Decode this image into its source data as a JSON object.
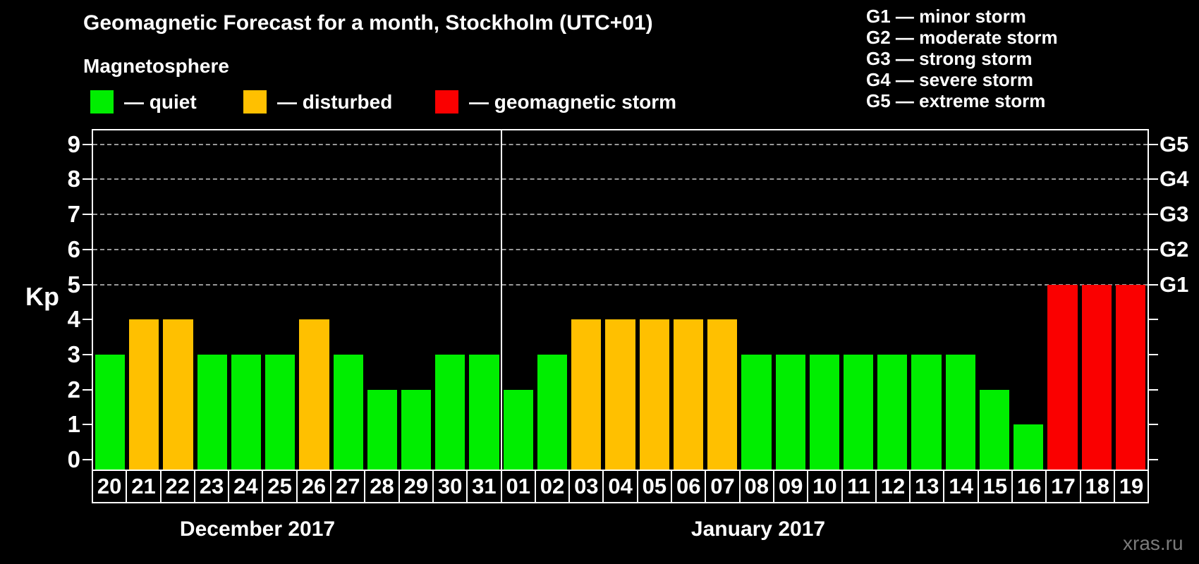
{
  "title": "Geomagnetic Forecast for a month, Stockholm (UTC+01)",
  "subtitle": "Magnetosphere",
  "legend": {
    "items": [
      {
        "name": "quiet",
        "label": "— quiet",
        "color": "#00ee00"
      },
      {
        "name": "disturbed",
        "label": "— disturbed",
        "color": "#ffc000"
      },
      {
        "name": "storm",
        "label": "— geomagnetic storm",
        "color": "#fa0000"
      }
    ]
  },
  "g_legend": [
    "G1 — minor storm",
    "G2 — moderate storm",
    "G3 — strong storm",
    "G4 — severe storm",
    "G5 — extreme storm"
  ],
  "watermark": "xras.ru",
  "chart_data": {
    "type": "bar",
    "title": "Geomagnetic Forecast for a month, Stockholm (UTC+01)",
    "ylabel": "Kp",
    "ylim": [
      0,
      9
    ],
    "yticks": [
      0,
      1,
      2,
      3,
      4,
      5,
      6,
      7,
      8,
      9
    ],
    "gridlines_at": [
      5,
      6,
      7,
      8,
      9
    ],
    "right_axis_labels": [
      {
        "kp": 5,
        "label": "G1"
      },
      {
        "kp": 6,
        "label": "G2"
      },
      {
        "kp": 7,
        "label": "G3"
      },
      {
        "kp": 8,
        "label": "G4"
      },
      {
        "kp": 9,
        "label": "G5"
      }
    ],
    "months": [
      {
        "label": "December 2017",
        "days": 12
      },
      {
        "label": "January 2017",
        "days": 19
      }
    ],
    "categories": [
      "20",
      "21",
      "22",
      "23",
      "24",
      "25",
      "26",
      "27",
      "28",
      "29",
      "30",
      "31",
      "01",
      "02",
      "03",
      "04",
      "05",
      "06",
      "07",
      "08",
      "09",
      "10",
      "11",
      "12",
      "13",
      "14",
      "15",
      "16",
      "17",
      "18",
      "19"
    ],
    "values": [
      3,
      4,
      4,
      3,
      3,
      3,
      4,
      3,
      2,
      2,
      3,
      3,
      2,
      3,
      4,
      4,
      4,
      4,
      4,
      3,
      3,
      3,
      3,
      3,
      3,
      3,
      2,
      1,
      5,
      5,
      5
    ],
    "statuses": [
      "quiet",
      "disturbed",
      "disturbed",
      "quiet",
      "quiet",
      "quiet",
      "disturbed",
      "quiet",
      "quiet",
      "quiet",
      "quiet",
      "quiet",
      "quiet",
      "quiet",
      "disturbed",
      "disturbed",
      "disturbed",
      "disturbed",
      "disturbed",
      "quiet",
      "quiet",
      "quiet",
      "quiet",
      "quiet",
      "quiet",
      "quiet",
      "quiet",
      "quiet",
      "storm",
      "storm",
      "storm"
    ],
    "colors": {
      "quiet": "#00ee00",
      "disturbed": "#ffc000",
      "storm": "#fa0000"
    },
    "grid_color": "#999999",
    "background": "#000000"
  }
}
